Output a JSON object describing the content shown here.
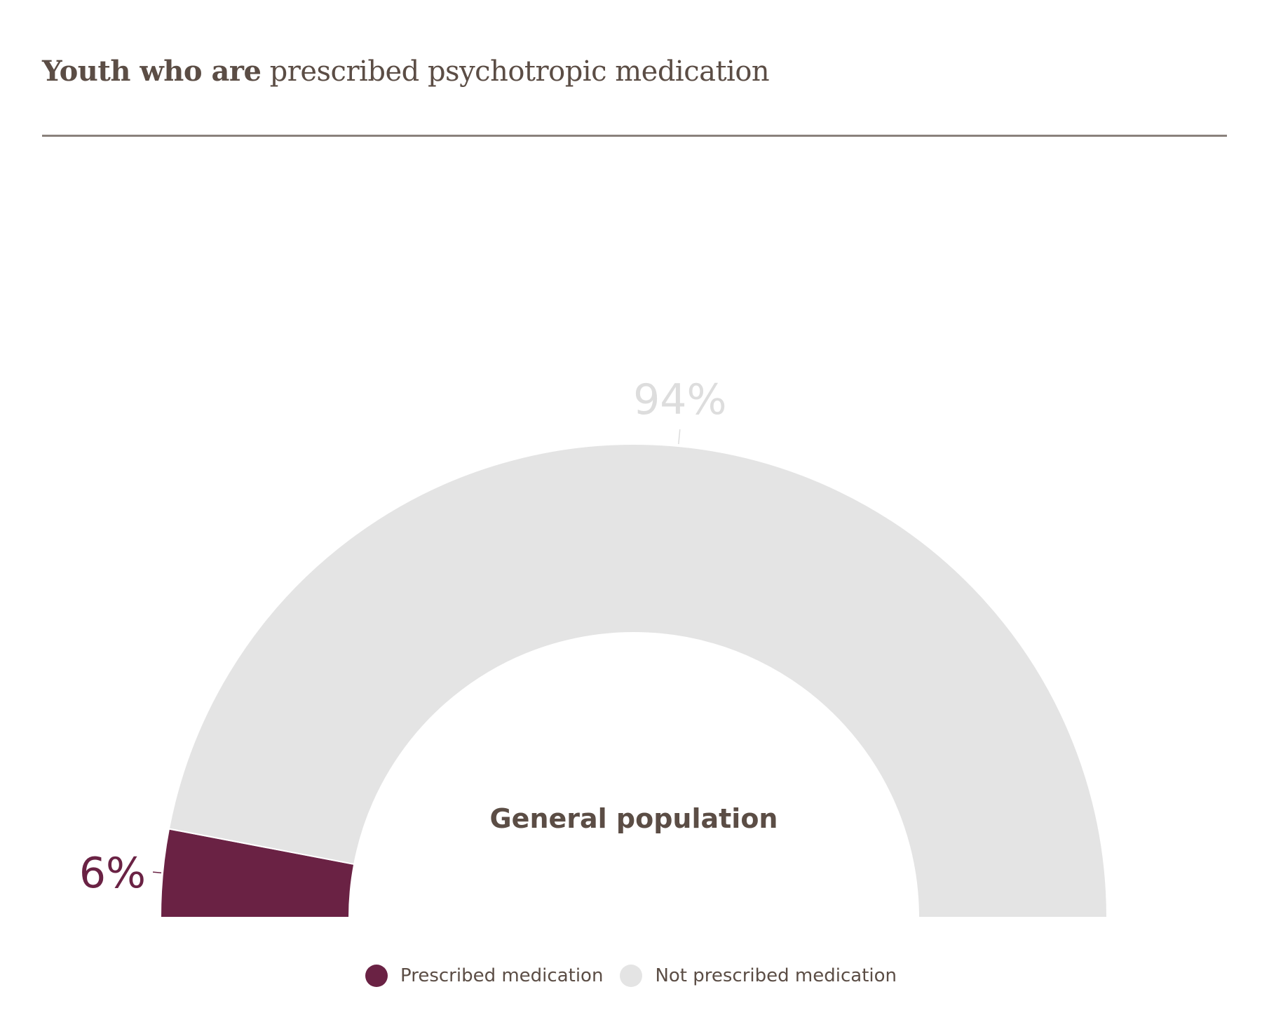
{
  "title": {
    "bold_part": "Youth who are",
    "regular_part": "prescribed psychotropic medication"
  },
  "chart_data": {
    "type": "pie",
    "variant": "semi-donut",
    "center_label": "General population",
    "series": [
      {
        "name": "Prescribed medication",
        "value": 6,
        "label": "6%",
        "color": "#6a2244"
      },
      {
        "name": "Not prescribed medication",
        "value": 94,
        "label": "94%",
        "color": "#e4e4e4"
      }
    ],
    "legend_position": "bottom"
  },
  "colors": {
    "title_text": "#5b4d45",
    "rule": "#8a817c",
    "label_light": "#dddddd",
    "label_dark": "#6a2244"
  }
}
